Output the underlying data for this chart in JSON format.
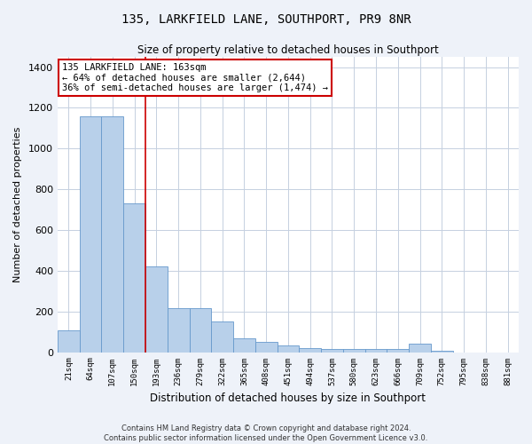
{
  "title": "135, LARKFIELD LANE, SOUTHPORT, PR9 8NR",
  "subtitle": "Size of property relative to detached houses in Southport",
  "xlabel": "Distribution of detached houses by size in Southport",
  "ylabel": "Number of detached properties",
  "bar_color": "#b8d0ea",
  "bar_edge_color": "#6699cc",
  "annotation_line_color": "#cc0000",
  "annotation_box_color": "#cc0000",
  "categories": [
    "21sqm",
    "64sqm",
    "107sqm",
    "150sqm",
    "193sqm",
    "236sqm",
    "279sqm",
    "322sqm",
    "365sqm",
    "408sqm",
    "451sqm",
    "494sqm",
    "537sqm",
    "580sqm",
    "623sqm",
    "666sqm",
    "709sqm",
    "752sqm",
    "795sqm",
    "838sqm",
    "881sqm"
  ],
  "values": [
    105,
    1160,
    1160,
    730,
    420,
    215,
    215,
    150,
    70,
    50,
    35,
    20,
    15,
    15,
    15,
    15,
    40,
    5,
    0,
    0,
    0
  ],
  "ylim": [
    0,
    1450
  ],
  "yticks": [
    0,
    200,
    400,
    600,
    800,
    1000,
    1200,
    1400
  ],
  "annotation_text": "135 LARKFIELD LANE: 163sqm\n← 64% of detached houses are smaller (2,644)\n36% of semi-detached houses are larger (1,474) →",
  "vline_x": 3.5,
  "footer_line1": "Contains HM Land Registry data © Crown copyright and database right 2024.",
  "footer_line2": "Contains public sector information licensed under the Open Government Licence v3.0.",
  "background_color": "#eef2f9",
  "plot_bg_color": "#ffffff",
  "grid_color": "#c5d0e0"
}
